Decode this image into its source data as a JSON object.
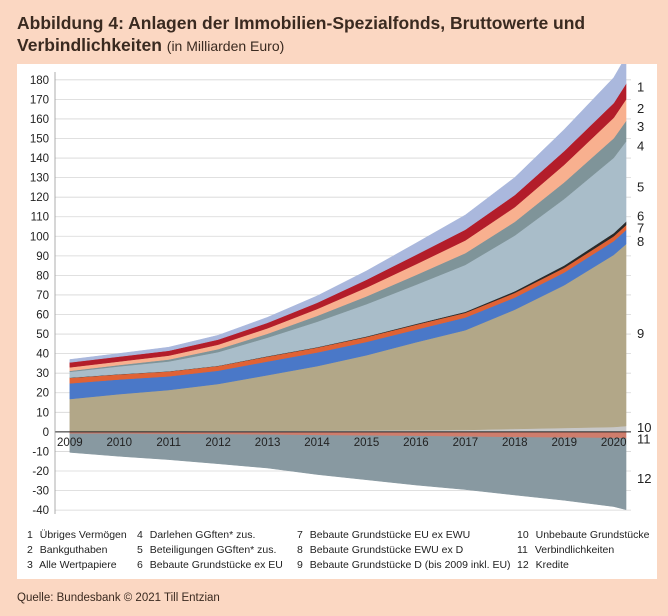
{
  "figure": {
    "title_main": "Abbildung 4: Anlagen der Immobilien-Spezialfonds, Bruttowerte und",
    "title_line2": "Verbindlichkeiten",
    "title_sub": "(in Milliarden Euro)",
    "source": "Quelle: Bundesbank © 2021 Till Entzian"
  },
  "legend": [
    {
      "num": "1",
      "label": "Übriges Vermögen"
    },
    {
      "num": "2",
      "label": "Bankguthaben"
    },
    {
      "num": "3",
      "label": "Alle Wertpapiere"
    },
    {
      "num": "4",
      "label": "Darlehen GGften* zus."
    },
    {
      "num": "5",
      "label": "Beteiligungen GGften* zus."
    },
    {
      "num": "6",
      "label": "Bebaute Grundstücke ex EU"
    },
    {
      "num": "7",
      "label": "Bebaute Grundstücke EU ex EWU"
    },
    {
      "num": "8",
      "label": "Bebaute Grundstücke EWU ex D"
    },
    {
      "num": "9",
      "label": "Bebaute Grundstücke D (bis 2009 inkl. EU)"
    },
    {
      "num": "10",
      "label": "Unbebaute Grundstücke"
    },
    {
      "num": "11",
      "label": "Verbindlichkeiten"
    },
    {
      "num": "12",
      "label": "Kredite"
    }
  ],
  "chart_data": {
    "type": "area",
    "stacked": true,
    "title": "Abbildung 4: Anlagen der Immobilien-Spezialfonds, Bruttowerte und Verbindlichkeiten (in Milliarden Euro)",
    "x": [
      2009.0,
      2010.0,
      2011.0,
      2012.0,
      2013.0,
      2014.0,
      2015.0,
      2016.0,
      2017.0,
      2018.0,
      2019.0,
      2020.0,
      2020.25
    ],
    "x_ticks": [
      "2009",
      "2010",
      "2011",
      "2012",
      "2013",
      "2014",
      "2015",
      "2016",
      "2017",
      "2018",
      "2019",
      "2020"
    ],
    "ylim": [
      -42,
      184
    ],
    "y_ticks": [
      -40,
      -30,
      -20,
      -10,
      0,
      10,
      20,
      30,
      40,
      50,
      60,
      70,
      80,
      90,
      100,
      110,
      120,
      130,
      140,
      150,
      160,
      170,
      180
    ],
    "series_positive": [
      {
        "num": "10",
        "name": "Unbebaute Grundstücke",
        "color": "#c7c7c7",
        "values": [
          0.3,
          0.3,
          0.4,
          0.5,
          0.5,
          0.6,
          0.7,
          0.8,
          1.0,
          1.5,
          2.0,
          2.5,
          3.0
        ]
      },
      {
        "num": "9",
        "name": "Bebaute Grundstücke D (bis 2009 inkl. EU)",
        "color": "#b2a788",
        "values": [
          16.5,
          19.0,
          21.0,
          24.0,
          28.5,
          33.0,
          38.5,
          45.0,
          51.0,
          61.0,
          73.0,
          88.0,
          93.0
        ]
      },
      {
        "num": "8",
        "name": "Bebaute Grundstücke EWU ex D",
        "color": "#4a78c8",
        "values": [
          8.0,
          7.5,
          7.0,
          6.8,
          7.0,
          7.0,
          6.8,
          6.5,
          6.5,
          6.2,
          6.5,
          7.0,
          7.2
        ]
      },
      {
        "num": "7",
        "name": "Bebaute Grundstücke EU ex EWU",
        "color": "#e06235",
        "values": [
          2.8,
          2.6,
          2.5,
          2.4,
          2.5,
          2.5,
          2.5,
          2.5,
          2.4,
          2.4,
          2.4,
          2.5,
          2.5
        ]
      },
      {
        "num": "6",
        "name": "Bebaute Grundstücke ex EU",
        "color": "#2a2a2a",
        "values": [
          0.1,
          0.1,
          0.1,
          0.1,
          0.2,
          0.2,
          0.3,
          0.4,
          0.5,
          0.8,
          1.2,
          1.6,
          1.8
        ]
      },
      {
        "num": "5",
        "name": "Beteiligungen GGften* zus.",
        "color": "#a9bdc9",
        "values": [
          3.0,
          4.0,
          5.0,
          7.0,
          9.5,
          13.0,
          16.5,
          20.0,
          24.0,
          28.5,
          34.0,
          38.5,
          41.0
        ]
      },
      {
        "num": "4",
        "name": "Darlehen GGften* zus.",
        "color": "#7f9499",
        "values": [
          0.5,
          0.7,
          1.0,
          1.5,
          2.0,
          3.0,
          4.0,
          5.0,
          6.0,
          7.0,
          8.5,
          10.0,
          10.5
        ]
      },
      {
        "num": "3",
        "name": "Alle Wertpapiere",
        "color": "#f8b08f",
        "values": [
          1.8,
          1.8,
          2.0,
          2.3,
          2.8,
          3.5,
          4.5,
          5.5,
          6.5,
          7.5,
          9.0,
          10.5,
          11.0
        ]
      },
      {
        "num": "2",
        "name": "Bankguthaben",
        "color": "#b31d2a",
        "values": [
          2.5,
          2.5,
          2.5,
          2.6,
          2.8,
          3.2,
          4.0,
          4.8,
          5.5,
          6.2,
          7.0,
          7.5,
          8.0
        ]
      },
      {
        "num": "1",
        "name": "Übriges Vermögen",
        "color": "#aab8dd",
        "values": [
          1.5,
          1.6,
          1.8,
          2.2,
          2.8,
          3.5,
          4.5,
          6.0,
          7.5,
          9.0,
          11.0,
          13.0,
          14.0
        ]
      }
    ],
    "series_negative": [
      {
        "num": "11",
        "name": "Verbindlichkeiten",
        "color": "#cf7d6c",
        "values": [
          -1.0,
          -1.0,
          -1.2,
          -1.3,
          -1.5,
          -1.8,
          -2.0,
          -2.2,
          -2.5,
          -2.8,
          -3.0,
          -3.2,
          -3.3
        ]
      },
      {
        "num": "12",
        "name": "Kredite",
        "color": "#8899a1",
        "values": [
          -9.5,
          -11.5,
          -13.0,
          -15.0,
          -17.0,
          -20.0,
          -22.5,
          -25.0,
          -27.0,
          -29.5,
          -32.0,
          -35.0,
          -36.5
        ]
      }
    ],
    "right_labels": [
      {
        "num": "1",
        "y": 176
      },
      {
        "num": "2",
        "y": 165
      },
      {
        "num": "3",
        "y": 156
      },
      {
        "num": "4",
        "y": 146
      },
      {
        "num": "5",
        "y": 125
      },
      {
        "num": "6",
        "y": 110
      },
      {
        "num": "7",
        "y": 104
      },
      {
        "num": "8",
        "y": 97
      },
      {
        "num": "9",
        "y": 50
      },
      {
        "num": "10",
        "y": 2
      },
      {
        "num": "11",
        "y": -4
      },
      {
        "num": "12",
        "y": -24
      }
    ],
    "grid": true,
    "legend_position": "bottom"
  }
}
